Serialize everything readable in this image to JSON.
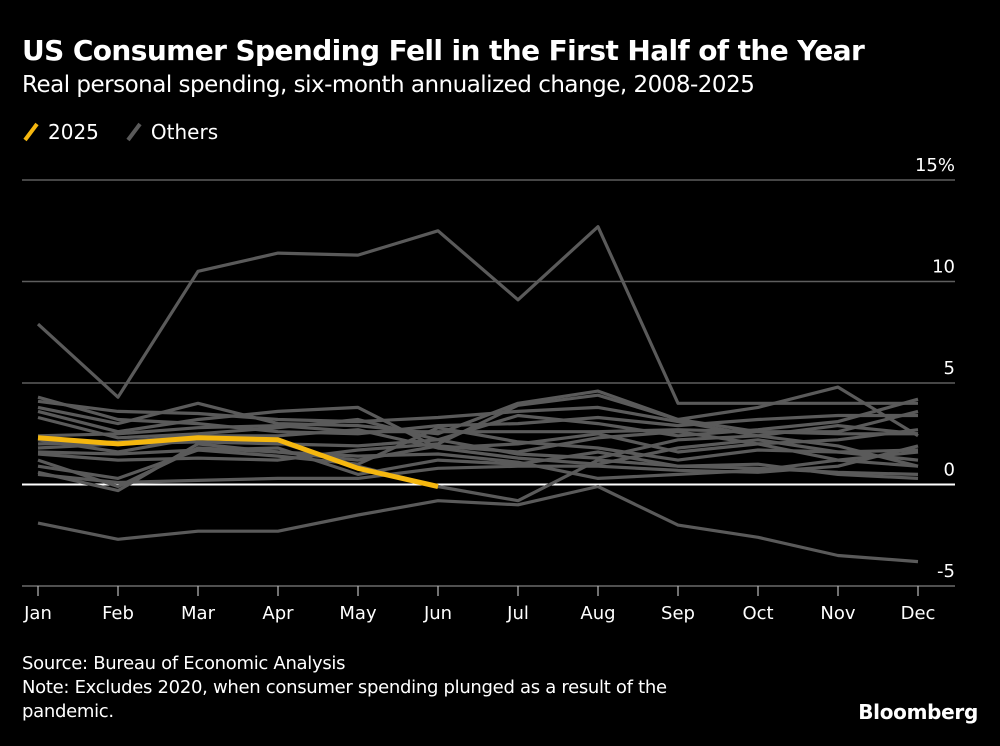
{
  "chart_data": {
    "type": "line",
    "title": "US Consumer Spending Fell in the First Half of the Year",
    "subtitle": "Real personal spending, six-month annualized change, 2008-2025",
    "xlabel": "",
    "ylabel": "",
    "categories": [
      "Jan",
      "Feb",
      "Mar",
      "Apr",
      "May",
      "Jun",
      "Jul",
      "Aug",
      "Sep",
      "Oct",
      "Nov",
      "Dec"
    ],
    "y_ticks": [
      {
        "value": 15,
        "label": "15%"
      },
      {
        "value": 10,
        "label": "10"
      },
      {
        "value": 5,
        "label": "5"
      },
      {
        "value": 0,
        "label": "0"
      },
      {
        "value": -5,
        "label": "-5"
      }
    ],
    "ylim": [
      -5,
      15
    ],
    "grid": true,
    "legend_position": "top-left",
    "legend": [
      {
        "name": "2025",
        "color": "#f5b70f"
      },
      {
        "name": "Others",
        "color": "#5a5a5a"
      }
    ],
    "series": [
      {
        "name": "Others",
        "values": [
          7.9,
          4.3,
          10.5,
          11.4,
          11.3,
          12.5,
          9.1,
          12.7,
          4.0,
          4.0,
          4.0,
          4.0
        ]
      },
      {
        "name": "Others",
        "values": [
          -1.9,
          -2.7,
          -2.3,
          -2.3,
          -1.5,
          -0.8,
          -1.0,
          -0.1,
          -2.0,
          -2.6,
          -3.5,
          -3.8
        ]
      },
      {
        "name": "Others",
        "values": [
          4.3,
          3.2,
          3.0,
          2.6,
          2.5,
          2.9,
          3.0,
          3.3,
          2.9,
          3.2,
          3.4,
          3.4
        ]
      },
      {
        "name": "Others",
        "values": [
          4.1,
          3.6,
          3.5,
          3.2,
          3.1,
          3.3,
          3.6,
          3.8,
          3.1,
          2.4,
          1.9,
          0.9
        ]
      },
      {
        "name": "Others",
        "values": [
          3.8,
          3.0,
          4.0,
          3.0,
          2.9,
          2.5,
          4.0,
          4.6,
          3.2,
          3.8,
          4.8,
          2.4
        ]
      },
      {
        "name": "Others",
        "values": [
          3.3,
          2.3,
          2.5,
          2.8,
          3.2,
          2.2,
          3.4,
          3.0,
          2.4,
          2.7,
          3.1,
          4.2
        ]
      },
      {
        "name": "Others",
        "values": [
          2.4,
          2.5,
          2.8,
          2.9,
          2.6,
          2.6,
          2.6,
          2.6,
          2.7,
          2.6,
          2.6,
          3.6
        ]
      },
      {
        "name": "Others",
        "values": [
          2.0,
          2.1,
          2.4,
          2.4,
          2.7,
          1.8,
          2.0,
          2.5,
          1.6,
          2.0,
          2.2,
          2.7
        ]
      },
      {
        "name": "Others",
        "values": [
          1.8,
          2.0,
          2.1,
          2.0,
          1.9,
          2.2,
          1.5,
          1.3,
          2.2,
          2.4,
          2.9,
          2.5
        ]
      },
      {
        "name": "Others",
        "values": [
          1.6,
          1.5,
          1.7,
          1.4,
          1.0,
          2.8,
          2.1,
          1.8,
          1.2,
          1.7,
          1.6,
          1.2
        ]
      },
      {
        "name": "Others",
        "values": [
          1.2,
          -0.1,
          1.8,
          1.6,
          1.2,
          1.9,
          1.6,
          2.3,
          2.6,
          2.0,
          1.2,
          0.9
        ]
      },
      {
        "name": "Others",
        "values": [
          0.9,
          0.3,
          1.7,
          1.8,
          0.5,
          1.2,
          1.0,
          1.6,
          0.9,
          0.8,
          0.6,
          0.5
        ]
      },
      {
        "name": "Others",
        "values": [
          0.6,
          -0.3,
          2.0,
          1.6,
          1.4,
          1.5,
          1.1,
          0.3,
          0.5,
          0.7,
          1.2,
          1.6
        ]
      },
      {
        "name": "Others",
        "values": [
          0.5,
          0.1,
          0.2,
          0.3,
          0.3,
          0.8,
          0.9,
          0.9,
          0.7,
          0.6,
          0.9,
          1.9
        ]
      },
      {
        "name": "Others",
        "values": [
          3.6,
          2.6,
          3.2,
          3.6,
          3.8,
          1.8,
          1.3,
          1.0,
          1.8,
          2.2,
          1.6,
          1.7
        ]
      },
      {
        "name": "Others",
        "values": [
          1.5,
          1.2,
          1.3,
          1.2,
          1.7,
          2.0,
          3.9,
          4.4,
          3.2,
          2.6,
          2.5,
          2.5
        ]
      },
      {
        "name": "Others",
        "values": [
          2.2,
          1.6,
          2.3,
          2.1,
          0.9,
          -0.1,
          -0.8,
          1.2,
          0.9,
          1.0,
          0.5,
          0.3
        ]
      },
      {
        "name": "2025",
        "values": [
          2.3,
          2.0,
          2.3,
          2.2,
          0.8,
          -0.1
        ],
        "highlight": true
      }
    ]
  },
  "legend": {
    "items": [
      {
        "label": "2025",
        "color": "#f5b70f"
      },
      {
        "label": "Others",
        "color": "#5a5a5a"
      }
    ]
  },
  "footer": {
    "source": "Source: Bureau of Economic Analysis",
    "note_line1": "Note: Excludes 2020, when consumer spending plunged as a result of the",
    "note_line2": "pandemic."
  },
  "brand": "Bloomberg"
}
